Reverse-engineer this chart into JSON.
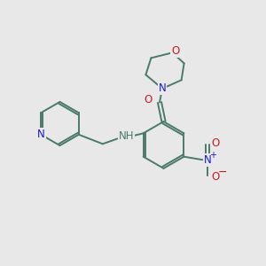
{
  "bg_color": "#e8e8e8",
  "bond_color": "#4a7a6a",
  "N_color": "#1a1acc",
  "O_color": "#cc1a1a",
  "lw": 1.4,
  "dpi": 100,
  "fig_size": [
    3.0,
    3.0
  ],
  "xlim": [
    0,
    10
  ],
  "ylim": [
    0,
    10
  ],
  "font_size": 8.5
}
